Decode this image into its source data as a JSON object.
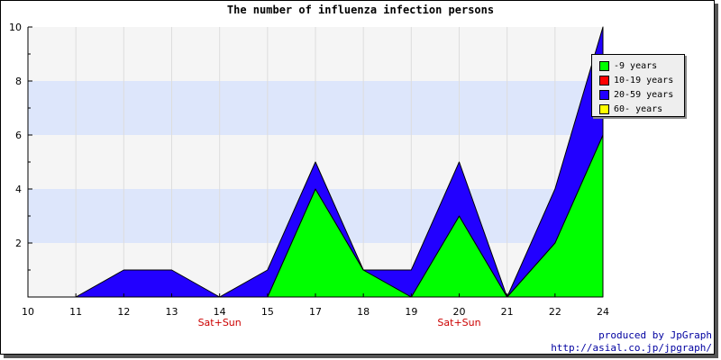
{
  "chart_data": {
    "type": "area",
    "title": "The number of influenza infection persons",
    "stacked": true,
    "x": [
      10,
      11,
      12,
      13,
      14,
      15,
      17,
      18,
      19,
      20,
      21,
      22,
      24
    ],
    "x_tick_labels": [
      "10",
      "11",
      "12",
      "13",
      "14",
      "15",
      "17",
      "18",
      "19",
      "20",
      "21",
      "22",
      "24"
    ],
    "x_sub_labels": [
      {
        "at": "14",
        "text": "Sat+Sun"
      },
      {
        "at": "20",
        "text": "Sat+Sun"
      }
    ],
    "ylim": [
      0,
      10
    ],
    "y_ticks": [
      2,
      4,
      6,
      8,
      10
    ],
    "grid": true,
    "legend_position": "top-right",
    "series": [
      {
        "name": "-9 years",
        "color": "#00ff00",
        "values": [
          0,
          0,
          0,
          0,
          0,
          0,
          4,
          1,
          0,
          3,
          0,
          2,
          6
        ]
      },
      {
        "name": "10-19 years",
        "color": "#ff0000",
        "values": [
          0,
          0,
          0,
          0,
          0,
          0,
          0,
          0,
          0,
          0,
          0,
          0,
          0
        ]
      },
      {
        "name": "20-59 years",
        "color": "#2200ff",
        "values": [
          0,
          0,
          1,
          1,
          0,
          1,
          1,
          0,
          1,
          2,
          0,
          2,
          4
        ]
      },
      {
        "name": "60- years",
        "color": "#ffff00",
        "values": [
          0,
          0,
          0,
          0,
          0,
          0,
          0,
          0,
          0,
          0,
          0,
          0,
          0
        ]
      }
    ]
  },
  "credits": {
    "line1": "produced by JpGraph",
    "line2": "http://asial.co.jp/jpgraph/"
  }
}
